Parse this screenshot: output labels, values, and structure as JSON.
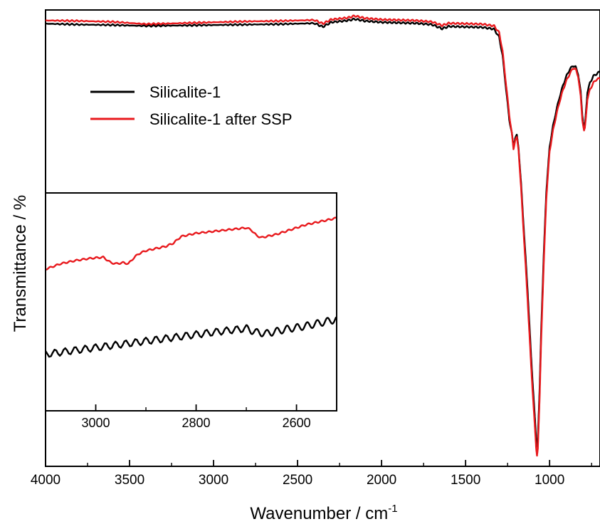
{
  "chart_data": [
    {
      "type": "line",
      "title": "",
      "xlabel": "Wavenumber / cm",
      "xlabel_sup": "-1",
      "ylabel": "Transmittance / %",
      "xlim": [
        4000,
        700
      ],
      "ylim": [
        0,
        100
      ],
      "x_reversed": true,
      "y_tick_labels_shown": false,
      "xticks": [
        4000,
        3500,
        3000,
        2500,
        2000,
        1500,
        1000
      ],
      "xtick_labels": [
        "4000",
        "3500",
        "3000",
        "2500",
        "2000",
        "1500",
        "1000"
      ],
      "legend": {
        "placement": "upper-left",
        "entries": [
          "Silicalite-1",
          "Silicalite-1 after SSP"
        ]
      },
      "grid": false,
      "series": [
        {
          "name": "Silicalite-1",
          "color": "#000000",
          "x": [
            4000,
            3800,
            3600,
            3400,
            3200,
            3000,
            2800,
            2600,
            2400,
            2350,
            2300,
            2200,
            2160,
            2100,
            2000,
            1900,
            1800,
            1700,
            1640,
            1600,
            1500,
            1400,
            1330,
            1300,
            1280,
            1260,
            1240,
            1225,
            1215,
            1205,
            1195,
            1185,
            1170,
            1150,
            1130,
            1110,
            1090,
            1080,
            1075,
            1070,
            1060,
            1050,
            1035,
            1020,
            1000,
            980,
            960,
            940,
            920,
            900,
            880,
            860,
            845,
            830,
            815,
            805,
            795,
            790,
            785,
            775,
            760,
            740,
            720,
            700
          ],
          "y": [
            97.0,
            96.8,
            96.7,
            96.5,
            96.6,
            96.7,
            96.8,
            96.9,
            97.1,
            96.3,
            97.3,
            97.7,
            98.0,
            97.6,
            97.3,
            97.2,
            97.1,
            96.8,
            95.9,
            96.4,
            96.3,
            96.2,
            95.8,
            94.0,
            90.0,
            83.0,
            76.0,
            73.0,
            70.0,
            72.0,
            72.5,
            70.0,
            62.0,
            50.0,
            38.0,
            24.0,
            12.0,
            6.0,
            4.5,
            6.0,
            16.0,
            30.0,
            46.0,
            60.0,
            70.0,
            74.5,
            78.0,
            81.0,
            83.5,
            85.5,
            87.0,
            87.8,
            87.5,
            86.0,
            82.0,
            77.0,
            74.0,
            74.5,
            77.0,
            82.0,
            84.0,
            85.5,
            86.0,
            86.5
          ]
        },
        {
          "name": "Silicalite-1 after SSP",
          "color": "#e8191d",
          "x": [
            4000,
            3800,
            3600,
            3400,
            3200,
            3000,
            2800,
            2600,
            2400,
            2350,
            2300,
            2200,
            2160,
            2100,
            2000,
            1900,
            1800,
            1700,
            1640,
            1600,
            1500,
            1400,
            1330,
            1300,
            1280,
            1260,
            1240,
            1225,
            1215,
            1205,
            1195,
            1185,
            1170,
            1150,
            1130,
            1110,
            1090,
            1080,
            1075,
            1070,
            1060,
            1050,
            1035,
            1020,
            1000,
            980,
            960,
            940,
            920,
            900,
            880,
            860,
            845,
            830,
            815,
            805,
            795,
            790,
            785,
            775,
            760,
            740,
            720,
            700
          ],
          "y": [
            97.7,
            97.6,
            97.4,
            96.9,
            97.1,
            97.3,
            97.5,
            97.6,
            97.8,
            97.0,
            97.9,
            98.3,
            98.7,
            98.2,
            97.9,
            97.8,
            97.7,
            97.4,
            96.6,
            97.1,
            97.0,
            96.9,
            96.5,
            95.0,
            91.0,
            84.0,
            77.0,
            73.0,
            69.5,
            71.5,
            72.0,
            69.5,
            61.0,
            48.5,
            36.0,
            22.0,
            10.0,
            4.0,
            2.5,
            4.0,
            14.0,
            28.0,
            44.0,
            58.5,
            69.0,
            73.5,
            77.0,
            80.0,
            82.5,
            84.5,
            86.0,
            87.3,
            87.0,
            85.5,
            81.0,
            76.0,
            73.5,
            74.0,
            76.0,
            80.5,
            82.5,
            84.0,
            84.8,
            85.0
          ]
        }
      ]
    },
    {
      "type": "line",
      "title": "",
      "xlabel": "",
      "ylabel": "",
      "xlim": [
        3100,
        2520
      ],
      "ylim": [
        0,
        100
      ],
      "x_reversed": true,
      "y_tick_labels_shown": false,
      "xticks": [
        3000,
        2800,
        2600
      ],
      "xtick_labels": [
        "3000",
        "2800",
        "2600"
      ],
      "grid": false,
      "series": [
        {
          "name": "Silicalite-1",
          "color": "#000000",
          "x": [
            3100,
            3050,
            3000,
            2950,
            2900,
            2850,
            2800,
            2750,
            2700,
            2680,
            2660,
            2640,
            2620,
            2600,
            2580,
            2560,
            2540,
            2520
          ],
          "y": [
            26.0,
            27.5,
            29.0,
            30.5,
            32.0,
            33.5,
            35.0,
            36.5,
            37.8,
            36.0,
            35.5,
            36.5,
            37.5,
            38.2,
            39.0,
            40.0,
            41.0,
            42.0
          ]
        },
        {
          "name": "Silicalite-1 after SSP",
          "color": "#e8191d",
          "x": [
            3100,
            3070,
            3040,
            3010,
            2985,
            2970,
            2960,
            2945,
            2935,
            2925,
            2915,
            2900,
            2880,
            2860,
            2845,
            2830,
            2800,
            2760,
            2720,
            2700,
            2690,
            2680,
            2670,
            2660,
            2640,
            2620,
            2600,
            2580,
            2560,
            2540,
            2520
          ],
          "y": [
            65.0,
            67.5,
            69.0,
            70.0,
            70.5,
            68.0,
            67.5,
            68.0,
            67.5,
            70.0,
            72.0,
            73.5,
            74.5,
            75.5,
            77.0,
            80.0,
            81.5,
            82.5,
            83.5,
            84.0,
            83.0,
            80.5,
            79.5,
            80.0,
            81.0,
            82.5,
            84.0,
            85.5,
            86.5,
            87.5,
            88.5
          ]
        }
      ]
    }
  ]
}
